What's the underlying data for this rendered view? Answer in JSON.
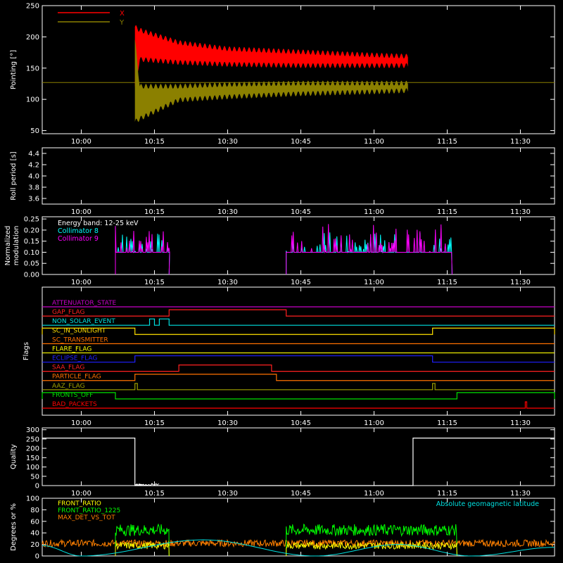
{
  "time_ticks": [
    "10:00",
    "10:15",
    "10:30",
    "10:45",
    "11:00",
    "11:15",
    "11:30"
  ],
  "time_domain": [
    "09:52",
    "11:37"
  ],
  "panels": {
    "pointing": {
      "ylabel": "Pointing [°]",
      "yticks": [
        50,
        100,
        150,
        200,
        250
      ],
      "ylim": [
        45,
        250
      ],
      "legend": [
        {
          "label": "X",
          "color": "#ff0000"
        },
        {
          "label": "Y",
          "color": "#8b8000"
        }
      ],
      "hline": 127,
      "hline_color": "#8b8000"
    },
    "roll": {
      "ylabel": "Roll period [s]",
      "yticks": [
        "3.6",
        "3.8",
        "4.0",
        "4.2",
        "4.4"
      ],
      "ylim": [
        3.5,
        4.5
      ]
    },
    "modulation": {
      "ylabel_line1": "Normalized",
      "ylabel_line2": "modulation",
      "yticks": [
        "0.00",
        "0.05",
        "0.10",
        "0.15",
        "0.20",
        "0.25"
      ],
      "ylim": [
        0,
        0.26
      ],
      "legend": [
        {
          "label": "Energy band: 12-25 keV",
          "color": "#ffffff"
        },
        {
          "label": "Collimator 8",
          "color": "#00ffff"
        },
        {
          "label": "Collimator 9",
          "color": "#ff00ff"
        }
      ]
    },
    "flags": {
      "ylabel": "Flags",
      "items": [
        {
          "label": "ATTENUATOR_STATE",
          "color": "#c800c8"
        },
        {
          "label": "GAP_FLAG",
          "color": "#ff2020"
        },
        {
          "label": "NON_SOLAR_EVENT",
          "color": "#00e0e0"
        },
        {
          "label": "SC_IN_SUNLIGHT",
          "color": "#ffe000"
        },
        {
          "label": "SC_TRANSMITTER",
          "color": "#ff7000"
        },
        {
          "label": "FLARE_FLAG",
          "color": "#ffff00"
        },
        {
          "label": "ECLIPSE_FLAG",
          "color": "#2020ff"
        },
        {
          "label": "SAA_FLAG",
          "color": "#ff2020"
        },
        {
          "label": "PARTICLE_FLAG",
          "color": "#ff7000"
        },
        {
          "label": "AAZ_FLAG",
          "color": "#a0a000"
        },
        {
          "label": "FRONTS_OFF",
          "color": "#00e000"
        },
        {
          "label": "BAD_PACKETS",
          "color": "#ff0000"
        }
      ]
    },
    "quality": {
      "ylabel": "Quality",
      "yticks": [
        0,
        50,
        100,
        150,
        200,
        250,
        300
      ],
      "ylim": [
        0,
        310
      ]
    },
    "ratio": {
      "ylabel": "Degrees or %",
      "yticks": [
        0,
        20,
        40,
        60,
        80,
        100
      ],
      "ylim": [
        0,
        100
      ],
      "legend": [
        {
          "label": "FRONT_RATIO",
          "color": "#ffff00"
        },
        {
          "label": "FRONT_RATIO_1225",
          "color": "#00ff00"
        },
        {
          "label": "MAX_DET_VS_TOT",
          "color": "#ff8000"
        }
      ],
      "right_label": "Absolute geomagnetic latitude",
      "right_label_color": "#00e0e0"
    }
  },
  "chart_data": [
    {
      "type": "line",
      "panel": "pointing",
      "series": [
        {
          "name": "X",
          "color": "#ff0000",
          "x": [
            "10:11",
            "10:12",
            "10:20",
            "10:30",
            "10:45",
            "11:00",
            "11:07"
          ],
          "y_upper": [
            220,
            215,
            195,
            185,
            180,
            175,
            173
          ],
          "y_lower": [
            115,
            160,
            155,
            152,
            150,
            150,
            150
          ]
        },
        {
          "name": "Y",
          "color": "#8b8000",
          "x": [
            "10:11",
            "10:12",
            "10:20",
            "10:30",
            "10:45",
            "11:00",
            "11:07"
          ],
          "y_upper": [
            200,
            125,
            125,
            128,
            130,
            130,
            130
          ],
          "y_lower": [
            60,
            65,
            95,
            100,
            105,
            108,
            110
          ]
        }
      ]
    },
    {
      "type": "line",
      "panel": "roll",
      "series": []
    },
    {
      "type": "line",
      "panel": "modulation",
      "series": [
        {
          "name": "Collimator 8",
          "color": "#00ffff",
          "segments": [
            [
              "10:07",
              "10:18"
            ],
            [
              "10:42",
              "11:16"
            ]
          ],
          "baseline": 0.1
        },
        {
          "name": "Collimator 9",
          "color": "#ff00ff",
          "segments": [
            [
              "10:07",
              "10:18"
            ],
            [
              "10:42",
              "11:16"
            ]
          ],
          "baseline": 0.1
        }
      ]
    },
    {
      "type": "line",
      "panel": "flags",
      "series": [
        {
          "name": "ATTENUATOR_STATE",
          "steps": []
        },
        {
          "name": "GAP_FLAG",
          "steps": [
            [
              "10:18",
              "10:42"
            ]
          ]
        },
        {
          "name": "NON_SOLAR_EVENT",
          "steps": [
            [
              "10:14",
              "10:15"
            ],
            [
              "10:16",
              "10:18"
            ]
          ]
        },
        {
          "name": "SC_IN_SUNLIGHT",
          "steps": [
            [
              "09:52",
              "10:11"
            ],
            [
              "11:12",
              "11:37"
            ]
          ]
        },
        {
          "name": "SC_TRANSMITTER",
          "steps": []
        },
        {
          "name": "FLARE_FLAG",
          "steps": []
        },
        {
          "name": "ECLIPSE_FLAG",
          "steps": [
            [
              "10:11",
              "11:12"
            ]
          ]
        },
        {
          "name": "SAA_FLAG",
          "steps": [
            [
              "10:20",
              "10:39"
            ]
          ]
        },
        {
          "name": "PARTICLE_FLAG",
          "steps": [
            [
              "10:11",
              "10:40"
            ]
          ]
        },
        {
          "name": "AAZ_FLAG",
          "steps": [
            [
              "10:11",
              "10:11.5"
            ],
            [
              "11:12",
              "11:12.5"
            ]
          ]
        },
        {
          "name": "FRONTS_OFF",
          "steps": [
            [
              "09:52",
              "10:07"
            ],
            [
              "11:17",
              "11:37"
            ]
          ]
        },
        {
          "name": "BAD_PACKETS",
          "steps": [
            [
              "11:31",
              "11:31.3"
            ]
          ]
        }
      ]
    },
    {
      "type": "line",
      "panel": "quality",
      "series": [
        {
          "name": "",
          "x": [
            "09:52",
            "10:11",
            "10:11",
            "11:08",
            "11:08",
            "11:37"
          ],
          "y": [
            255,
            255,
            0,
            0,
            255,
            255
          ]
        }
      ]
    },
    {
      "type": "line",
      "panel": "ratio",
      "series": [
        {
          "name": "FRONT_RATIO",
          "color": "#ffff00",
          "segments": [
            [
              "10:07",
              "10:18"
            ],
            [
              "10:42",
              "11:17"
            ]
          ],
          "level": 18
        },
        {
          "name": "FRONT_RATIO_1225",
          "color": "#00ff00",
          "segments": [
            [
              "10:07",
              "10:18"
            ],
            [
              "10:42",
              "11:17"
            ]
          ],
          "level": 45
        },
        {
          "name": "MAX_DET_VS_TOT",
          "color": "#ff8000",
          "segments": [
            [
              "09:52",
              "11:37"
            ]
          ],
          "level": 22
        },
        {
          "name": "Absolute geomagnetic latitude",
          "color": "#00e0e0",
          "x": [
            "09:52",
            "10:00",
            "10:25",
            "10:48",
            "11:05",
            "11:20",
            "11:37"
          ],
          "y": [
            18,
            0,
            28,
            0,
            20,
            0,
            15
          ]
        }
      ]
    }
  ]
}
